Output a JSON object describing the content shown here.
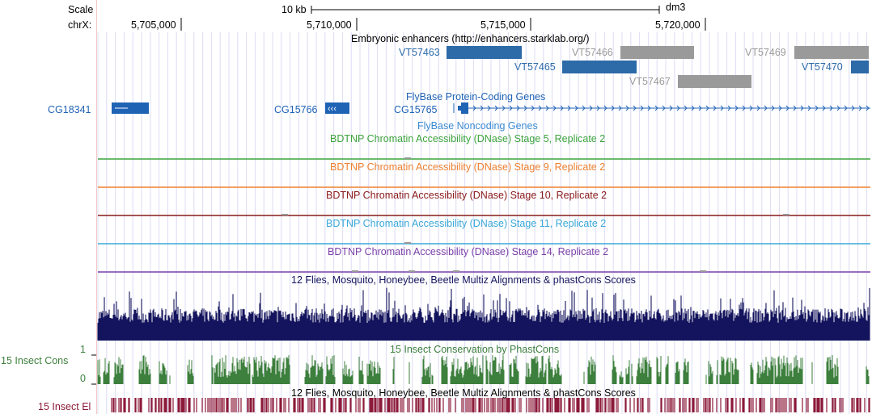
{
  "ruler": {
    "scale_label": "Scale",
    "scale_bar_label": "10 kb",
    "assembly": "dm3",
    "chrom_label": "chrX:",
    "ticks": [
      "5,705,000",
      "5,710,000",
      "5,715,000",
      "5,720,000"
    ]
  },
  "tracks": {
    "enhancers": {
      "title": "Embryonic enhancers (http://enhancers.starklab.org/)",
      "items": [
        {
          "name": "VT57463",
          "color": "#2c6aa8"
        },
        {
          "name": "VT57465",
          "color": "#2c6aa8"
        },
        {
          "name": "VT57466",
          "color": "#9a9a9a"
        },
        {
          "name": "VT57467",
          "color": "#9a9a9a"
        },
        {
          "name": "VT57469",
          "color": "#9a9a9a"
        },
        {
          "name": "VT57470",
          "color": "#2c6aa8"
        }
      ]
    },
    "protein_coding": {
      "title": "FlyBase Protein-Coding Genes",
      "genes": [
        "CG18341",
        "CG15766",
        "CG15765"
      ],
      "color": "#1f63b5"
    },
    "noncoding": {
      "title": "FlyBase Noncoding Genes",
      "color": "#3b8ad1"
    },
    "dnase": [
      {
        "title": "BDTNP Chromatin Accessibility (DNase) Stage 5, Replicate 2",
        "color": "#3ca33c"
      },
      {
        "title": "BDTNP Chromatin Accessibility (DNase) Stage 9, Replicate 2",
        "color": "#ee8030"
      },
      {
        "title": "BDTNP Chromatin Accessibility (DNase) Stage 10, Replicate 2",
        "color": "#8b1a1a"
      },
      {
        "title": "BDTNP Chromatin Accessibility (DNase) Stage 11, Replicate 2",
        "color": "#3aa8d8"
      },
      {
        "title": "BDTNP Chromatin Accessibility (DNase) Stage 14, Replicate 2",
        "color": "#7a3fa8"
      }
    ],
    "multiz": {
      "title": "12 Flies, Mosquito, Honeybee, Beetle Multiz Alignments & phastCons Scores",
      "color": "#14145e"
    },
    "cons": {
      "title": "15 Insect Conservation by PhastCons",
      "side_label": "15 Insect Cons",
      "y_max": "1",
      "y_min": "0",
      "color": "#3d7f3d"
    },
    "elements": {
      "title": "12 Flies, Mosquito, Honeybee, Beetle Multiz Alignments & phastCons Scores",
      "side_label": "15 Insect El",
      "color": "#8c1a3a"
    }
  }
}
